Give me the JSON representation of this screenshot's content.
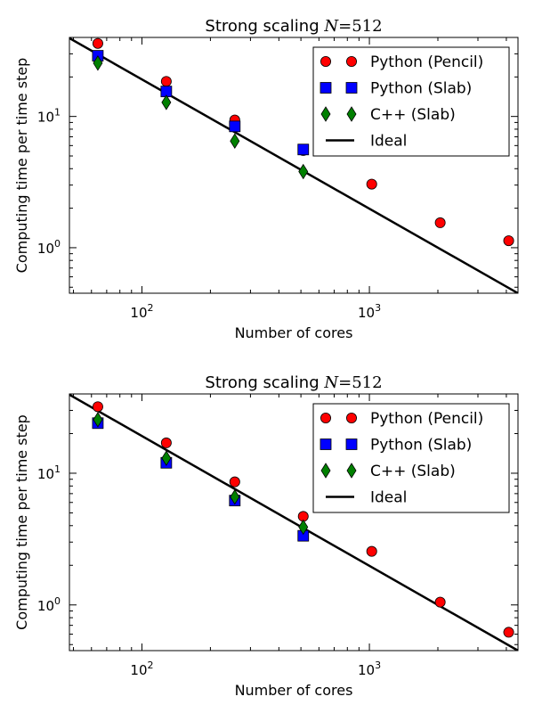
{
  "chart_data": [
    {
      "type": "scatter",
      "scale": "log-log",
      "title": "Strong scaling N=512",
      "title_prefix": "Strong scaling",
      "title_math_var": "N",
      "title_math_rest": "=512",
      "xlabel": "Number of cores",
      "ylabel": "Computing time per time step",
      "xlim": [
        48,
        4500
      ],
      "ylim": [
        0.45,
        40
      ],
      "xticks": [
        {
          "value": 100,
          "base": "10",
          "exp": "2"
        },
        {
          "value": 1000,
          "base": "10",
          "exp": "3"
        }
      ],
      "yticks": [
        {
          "value": 1,
          "base": "10",
          "exp": "0"
        },
        {
          "value": 10,
          "base": "10",
          "exp": "1"
        }
      ],
      "legend_position": "top-right",
      "series": [
        {
          "name": "Python (Pencil)",
          "marker": "circle",
          "color": "#ff0000",
          "x": [
            64,
            128,
            256,
            512,
            1024,
            2048,
            4096
          ],
          "y": [
            36,
            18.5,
            9.4,
            5.5,
            3.05,
            1.55,
            1.13
          ]
        },
        {
          "name": "Python (Slab)",
          "marker": "square",
          "color": "#0000ff",
          "x": [
            64,
            128,
            256,
            512
          ],
          "y": [
            29,
            15.5,
            8.4,
            5.6
          ]
        },
        {
          "name": "C++ (Slab)",
          "marker": "diamond",
          "color": "#008000",
          "x": [
            64,
            128,
            256,
            512
          ],
          "y": [
            25.5,
            12.8,
            6.5,
            3.8
          ]
        },
        {
          "name": "Ideal",
          "marker": "line",
          "color": "#000000",
          "x": [
            48,
            4500
          ],
          "y": [
            39.5,
            0.45
          ]
        }
      ]
    },
    {
      "type": "scatter",
      "scale": "log-log",
      "title": "Strong scaling N=512",
      "title_prefix": "Strong scaling",
      "title_math_var": "N",
      "title_math_rest": "=512",
      "xlabel": "Number of cores",
      "ylabel": "Computing time per time step",
      "xlim": [
        48,
        4500
      ],
      "ylim": [
        0.45,
        40
      ],
      "xticks": [
        {
          "value": 100,
          "base": "10",
          "exp": "2"
        },
        {
          "value": 1000,
          "base": "10",
          "exp": "3"
        }
      ],
      "yticks": [
        {
          "value": 1,
          "base": "10",
          "exp": "0"
        },
        {
          "value": 10,
          "base": "10",
          "exp": "1"
        }
      ],
      "legend_position": "top-right",
      "series": [
        {
          "name": "Python (Pencil)",
          "marker": "circle",
          "color": "#ff0000",
          "x": [
            64,
            128,
            256,
            512,
            1024,
            2048,
            4096
          ],
          "y": [
            32,
            17,
            8.6,
            4.7,
            2.55,
            1.05,
            0.62
          ]
        },
        {
          "name": "Python (Slab)",
          "marker": "square",
          "color": "#0000ff",
          "x": [
            64,
            128,
            256,
            512
          ],
          "y": [
            24,
            12,
            6.2,
            3.35
          ]
        },
        {
          "name": "C++ (Slab)",
          "marker": "diamond",
          "color": "#008000",
          "x": [
            64,
            128,
            256,
            512
          ],
          "y": [
            25.5,
            13,
            6.6,
            3.9
          ]
        },
        {
          "name": "Ideal",
          "marker": "line",
          "color": "#000000",
          "x": [
            48,
            4500
          ],
          "y": [
            39.5,
            0.45
          ]
        }
      ]
    }
  ]
}
